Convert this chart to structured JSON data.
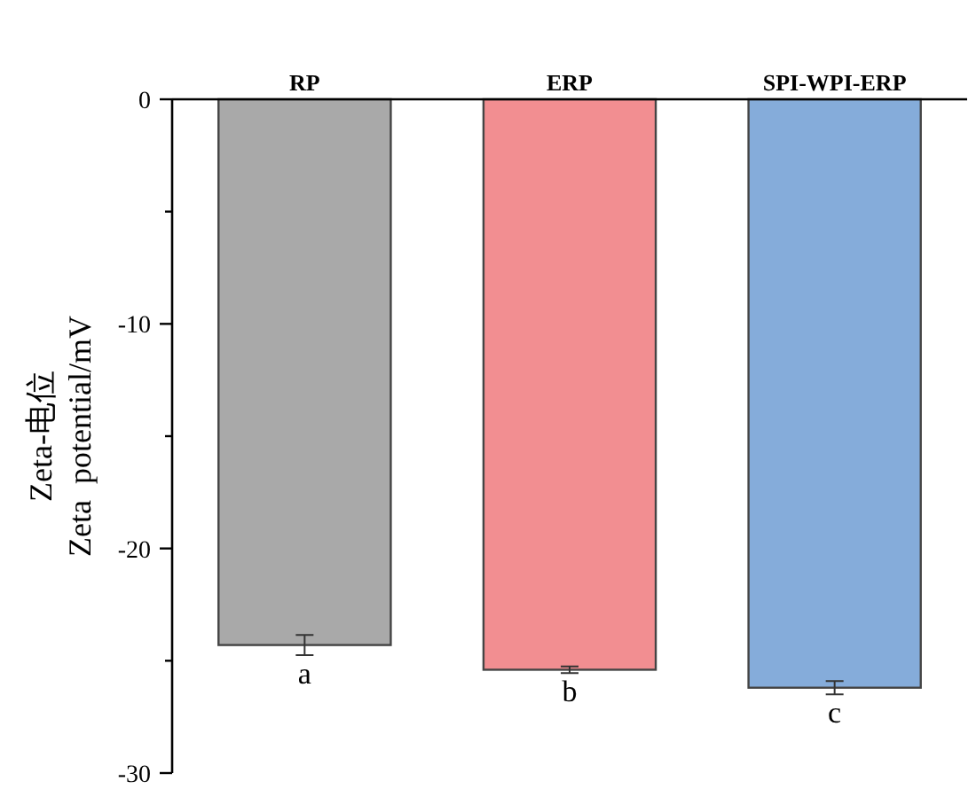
{
  "chart_data": {
    "type": "bar",
    "ylabel": "Zeta-电位\nZeta  potential/mV",
    "categories": [
      "RP",
      "ERP",
      "SPI-WPI-ERP"
    ],
    "values": [
      -24.3,
      -25.4,
      -26.2
    ],
    "colors": [
      "#a9a9a9",
      "#f28e91",
      "#85acda"
    ],
    "errors": [
      0.45,
      0.15,
      0.3
    ],
    "ylim": [
      -30,
      0
    ],
    "yticks": [
      0,
      {
        "value": -5,
        "label": null
      },
      -10,
      {
        "value": -15,
        "label": null
      },
      -20,
      {
        "value": -25,
        "label": null
      },
      -30
    ],
    "annotations": [
      {
        "text": "a",
        "x": "RP",
        "y": -24.3
      },
      {
        "text": "b",
        "x": "ERP",
        "y": -25.4
      },
      {
        "text": "c",
        "x": "SPI-WPI-ERP",
        "y": -26.2
      }
    ],
    "grid": false
  }
}
